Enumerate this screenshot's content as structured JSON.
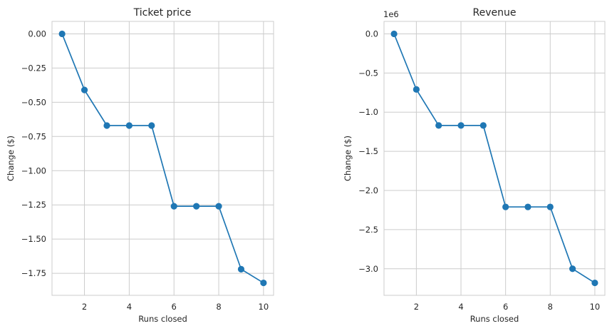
{
  "chart_data": [
    {
      "type": "line",
      "title": "Ticket price",
      "xlabel": "Runs closed",
      "ylabel": "Change ($)",
      "y_offset_label": "",
      "x": [
        1,
        2,
        3,
        4,
        5,
        6,
        7,
        8,
        9,
        10
      ],
      "series": [
        {
          "values": [
            0.0,
            -0.41,
            -0.67,
            -0.67,
            -0.67,
            -1.26,
            -1.26,
            -1.26,
            -1.72,
            -1.82
          ]
        }
      ],
      "xlim": [
        0.55,
        10.45
      ],
      "ylim": [
        -1.911,
        0.091
      ],
      "xticks": [
        2,
        4,
        6,
        8,
        10
      ],
      "yticks": [
        0.0,
        -0.25,
        -0.5,
        -0.75,
        -1.0,
        -1.25,
        -1.5,
        -1.75
      ],
      "ytick_labels": [
        "0.00",
        "−0.25",
        "−0.50",
        "−0.75",
        "−1.00",
        "−1.25",
        "−1.50",
        "−1.75"
      ],
      "grid": true,
      "color": "#1f77b4",
      "marker": "circle"
    },
    {
      "type": "line",
      "title": "Revenue",
      "xlabel": "Runs closed",
      "ylabel": "Change ($)",
      "y_offset_label": "1e6",
      "x": [
        1,
        2,
        3,
        4,
        5,
        6,
        7,
        8,
        9,
        10
      ],
      "series": [
        {
          "values": [
            0.0,
            -0.71,
            -1.17,
            -1.17,
            -1.17,
            -2.21,
            -2.21,
            -2.21,
            -3.0,
            -3.18
          ]
        }
      ],
      "xlim": [
        0.55,
        10.45
      ],
      "ylim": [
        -3.339,
        0.159
      ],
      "xticks": [
        2,
        4,
        6,
        8,
        10
      ],
      "yticks": [
        0.0,
        -0.5,
        -1.0,
        -1.5,
        -2.0,
        -2.5,
        -3.0
      ],
      "ytick_labels": [
        "0.0",
        "−0.5",
        "−1.0",
        "−1.5",
        "−2.0",
        "−2.5",
        "−3.0"
      ],
      "grid": true,
      "color": "#1f77b4",
      "marker": "circle"
    }
  ]
}
